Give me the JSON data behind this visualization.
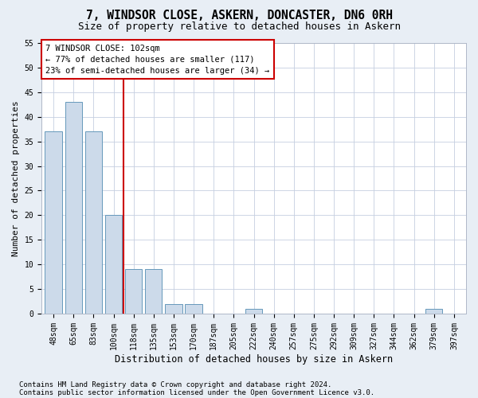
{
  "title1": "7, WINDSOR CLOSE, ASKERN, DONCASTER, DN6 0RH",
  "title2": "Size of property relative to detached houses in Askern",
  "xlabel": "Distribution of detached houses by size in Askern",
  "ylabel": "Number of detached properties",
  "categories": [
    "48sqm",
    "65sqm",
    "83sqm",
    "100sqm",
    "118sqm",
    "135sqm",
    "153sqm",
    "170sqm",
    "187sqm",
    "205sqm",
    "222sqm",
    "240sqm",
    "257sqm",
    "275sqm",
    "292sqm",
    "309sqm",
    "327sqm",
    "344sqm",
    "362sqm",
    "379sqm",
    "397sqm"
  ],
  "values": [
    37,
    43,
    37,
    20,
    9,
    9,
    2,
    2,
    0,
    0,
    1,
    0,
    0,
    0,
    0,
    0,
    0,
    0,
    0,
    1,
    0
  ],
  "bar_color": "#ccdaea",
  "bar_edge_color": "#6699bb",
  "vline_color": "#cc0000",
  "vline_pos": 3.5,
  "annotation_line1": "7 WINDSOR CLOSE: 102sqm",
  "annotation_line2": "← 77% of detached houses are smaller (117)",
  "annotation_line3": "23% of semi-detached houses are larger (34) →",
  "annotation_box_color": "#cc0000",
  "ylim": [
    0,
    55
  ],
  "yticks": [
    0,
    5,
    10,
    15,
    20,
    25,
    30,
    35,
    40,
    45,
    50,
    55
  ],
  "footnote1": "Contains HM Land Registry data © Crown copyright and database right 2024.",
  "footnote2": "Contains public sector information licensed under the Open Government Licence v3.0.",
  "background_color": "#e8eef5",
  "plot_background": "#ffffff",
  "title1_fontsize": 10.5,
  "title2_fontsize": 9,
  "xlabel_fontsize": 8.5,
  "ylabel_fontsize": 8,
  "tick_fontsize": 7,
  "annotation_fontsize": 7.5,
  "footnote_fontsize": 6.5
}
